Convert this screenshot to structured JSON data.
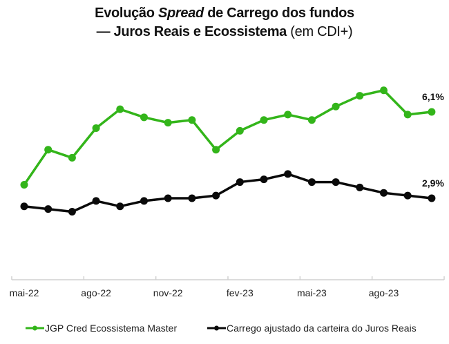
{
  "title": {
    "line1_a": "Evolução ",
    "line1_em": "Spread",
    "line1_b": " de Carrego dos fundos",
    "line2_bold": "— Juros Reais e Ecossistema",
    "line2_light": " (em CDI+)"
  },
  "colors": {
    "green": "#33b51a",
    "black": "#0a0a0a",
    "axis": "#d0d0d0"
  },
  "chart_data": {
    "type": "line",
    "title": "Evolução Spread de Carrego dos fundos — Juros Reais e Ecossistema (em CDI+)",
    "xlabel": "",
    "ylabel": "",
    "x": [
      "mai-22",
      "jun-22",
      "jul-22",
      "ago-22",
      "set-22",
      "out-22",
      "nov-22",
      "dez-22",
      "jan-23",
      "fev-23",
      "mar-23",
      "abr-23",
      "mai-23",
      "jun-23",
      "jul-23",
      "ago-23",
      "set-23",
      "out-23"
    ],
    "xtick_labels": [
      {
        "label": "mai-22",
        "index": 0
      },
      {
        "label": "ago-22",
        "index": 3
      },
      {
        "label": "nov-22",
        "index": 6
      },
      {
        "label": "fev-23",
        "index": 9
      },
      {
        "label": "mai-23",
        "index": 12
      },
      {
        "label": "ago-23",
        "index": 15
      }
    ],
    "ylim": [
      0.1,
      8.0
    ],
    "grid": false,
    "legend_position": "bottom",
    "series": [
      {
        "name": "JGP Cred Ecossistema Master",
        "color": "#33b51a",
        "values": [
          3.4,
          4.7,
          4.4,
          5.5,
          6.2,
          5.9,
          5.7,
          5.8,
          4.7,
          5.4,
          5.8,
          6.0,
          5.8,
          6.3,
          6.7,
          6.9,
          6.0,
          6.1
        ],
        "end_label": "6,1%"
      },
      {
        "name": "Carrego ajustado da carteira do Juros Reais",
        "color": "#0a0a0a",
        "values": [
          2.6,
          2.5,
          2.4,
          2.8,
          2.6,
          2.8,
          2.9,
          2.9,
          3.0,
          3.5,
          3.6,
          3.8,
          3.5,
          3.5,
          3.3,
          3.1,
          3.0,
          2.9
        ],
        "end_label": "2,9%"
      }
    ]
  }
}
